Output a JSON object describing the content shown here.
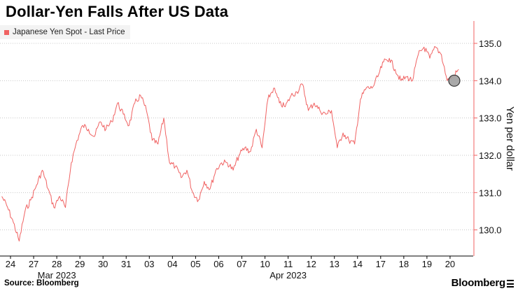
{
  "title": "Dollar-Yen Falls After US Data",
  "footer": {
    "source": "Source: Bloomberg",
    "brand": "Bloomberg"
  },
  "colors": {
    "series": "#f06262",
    "grid": "#c8c8c8",
    "axis": "#f06262",
    "marker_fill": "#a0a0a0"
  },
  "chart_data": {
    "type": "line",
    "ylabel": "Yen per dollar",
    "y_ticks": [
      130.0,
      131.0,
      132.0,
      133.0,
      134.0,
      135.0
    ],
    "ylim": [
      129.3,
      135.6
    ],
    "grid": true,
    "legend_placement": "top-left",
    "x_ticks": [
      "24",
      "27",
      "28",
      "29",
      "30",
      "31",
      "03",
      "04",
      "05",
      "06",
      "07",
      "10",
      "11",
      "12",
      "13",
      "14",
      "17",
      "18",
      "19",
      "20"
    ],
    "x_month_labels": [
      {
        "label": "Mar 2023",
        "tick": "28"
      },
      {
        "label": "Apr 2023",
        "tick": "11"
      }
    ],
    "series": [
      {
        "name": "Japanese Yen Spot - Last Price",
        "points": [
          [
            "24",
            130.9
          ],
          [
            "24",
            130.6
          ],
          [
            "24",
            130.2
          ],
          [
            "24",
            129.7
          ],
          [
            "27",
            130.5
          ],
          [
            "27",
            130.8
          ],
          [
            "27",
            131.2
          ],
          [
            "27",
            131.6
          ],
          [
            "28",
            131.1
          ],
          [
            "28",
            130.6
          ],
          [
            "28",
            130.9
          ],
          [
            "28",
            130.6
          ],
          [
            "29",
            131.8
          ],
          [
            "29",
            132.4
          ],
          [
            "29",
            132.8
          ],
          [
            "29",
            132.7
          ],
          [
            "30",
            132.5
          ],
          [
            "30",
            132.9
          ],
          [
            "30",
            132.7
          ],
          [
            "30",
            132.9
          ],
          [
            "31",
            133.4
          ],
          [
            "31",
            133.1
          ],
          [
            "31",
            132.8
          ],
          [
            "31",
            133.4
          ],
          [
            "03",
            133.6
          ],
          [
            "03",
            133.2
          ],
          [
            "03",
            132.4
          ],
          [
            "03",
            132.3
          ],
          [
            "04",
            133.0
          ],
          [
            "04",
            131.8
          ],
          [
            "04",
            131.7
          ],
          [
            "04",
            131.4
          ],
          [
            "05",
            131.6
          ],
          [
            "05",
            131.0
          ],
          [
            "05",
            130.8
          ],
          [
            "05",
            131.3
          ],
          [
            "06",
            131.1
          ],
          [
            "06",
            131.6
          ],
          [
            "06",
            131.8
          ],
          [
            "06",
            131.8
          ],
          [
            "07",
            131.6
          ],
          [
            "07",
            132.0
          ],
          [
            "07",
            132.2
          ],
          [
            "07",
            132.1
          ],
          [
            "10",
            132.7
          ],
          [
            "10",
            132.2
          ],
          [
            "10",
            133.5
          ],
          [
            "10",
            133.8
          ],
          [
            "11",
            133.4
          ],
          [
            "11",
            133.3
          ],
          [
            "11",
            133.6
          ],
          [
            "11",
            133.7
          ],
          [
            "12",
            133.9
          ],
          [
            "12",
            133.2
          ],
          [
            "12",
            133.4
          ],
          [
            "12",
            133.2
          ],
          [
            "13",
            133.1
          ],
          [
            "13",
            133.2
          ],
          [
            "13",
            132.2
          ],
          [
            "13",
            132.6
          ],
          [
            "14",
            132.4
          ],
          [
            "14",
            132.3
          ],
          [
            "14",
            133.5
          ],
          [
            "14",
            133.8
          ],
          [
            "17",
            133.8
          ],
          [
            "17",
            134.1
          ],
          [
            "17",
            134.5
          ],
          [
            "17",
            134.6
          ],
          [
            "18",
            134.3
          ],
          [
            "18",
            134.0
          ],
          [
            "18",
            134.1
          ],
          [
            "18",
            134.0
          ],
          [
            "19",
            134.7
          ],
          [
            "19",
            134.9
          ],
          [
            "19",
            134.6
          ],
          [
            "19",
            134.9
          ],
          [
            "20",
            134.7
          ],
          [
            "20",
            134.0
          ],
          [
            "20",
            134.1
          ],
          [
            "20",
            134.3
          ]
        ]
      }
    ],
    "annotations": [
      {
        "type": "circle-marker",
        "x": "20",
        "y": 134.0
      }
    ]
  }
}
